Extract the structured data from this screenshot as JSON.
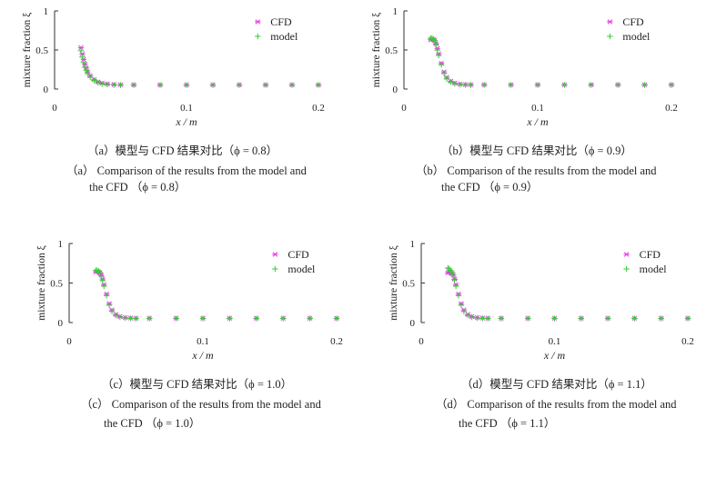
{
  "chart_data": [
    {
      "type": "scatter",
      "ylabel": "mixture fraction ξ",
      "xlabel": "x / m",
      "xlim": [
        0,
        0.2
      ],
      "ylim": [
        0,
        1
      ],
      "x_ticks": [
        "0",
        "0.1",
        "0.2"
      ],
      "y_ticks": [
        "0",
        "0.5",
        "1"
      ],
      "legend_position": "top-right",
      "series": [
        {
          "name": "CFD",
          "marker": "*",
          "color": "#e040e0",
          "x": [
            0.02,
            0.021,
            0.022,
            0.023,
            0.024,
            0.025,
            0.027,
            0.03,
            0.033,
            0.036,
            0.04,
            0.045,
            0.05,
            0.06,
            0.08,
            0.1,
            0.12,
            0.14,
            0.16,
            0.18,
            0.2
          ],
          "y": [
            0.53,
            0.45,
            0.38,
            0.32,
            0.27,
            0.22,
            0.17,
            0.12,
            0.09,
            0.075,
            0.065,
            0.058,
            0.055,
            0.054,
            0.054,
            0.054,
            0.054,
            0.054,
            0.054,
            0.054,
            0.054
          ]
        },
        {
          "name": "model",
          "marker": "+",
          "color": "#33cc33",
          "x": [
            0.02,
            0.021,
            0.022,
            0.023,
            0.024,
            0.025,
            0.027,
            0.03,
            0.033,
            0.036,
            0.04,
            0.045,
            0.05,
            0.06,
            0.08,
            0.1,
            0.12,
            0.14,
            0.16,
            0.18,
            0.2
          ],
          "y": [
            0.49,
            0.41,
            0.34,
            0.28,
            0.24,
            0.2,
            0.15,
            0.11,
            0.08,
            0.065,
            0.057,
            0.052,
            0.05,
            0.05,
            0.05,
            0.05,
            0.05,
            0.05,
            0.05,
            0.05,
            0.05
          ]
        }
      ]
    },
    {
      "type": "scatter",
      "ylabel": "mixture fraction ξ",
      "xlabel": "x / m",
      "xlim": [
        0,
        0.2
      ],
      "ylim": [
        0,
        1
      ],
      "x_ticks": [
        "0",
        "0.1",
        "0.2"
      ],
      "y_ticks": [
        "0",
        "0.5",
        "1"
      ],
      "legend_position": "top-right",
      "series": [
        {
          "name": "CFD",
          "marker": "*",
          "color": "#e040e0",
          "x": [
            0.02,
            0.021,
            0.022,
            0.023,
            0.024,
            0.025,
            0.026,
            0.028,
            0.03,
            0.032,
            0.035,
            0.038,
            0.042,
            0.046,
            0.05,
            0.06,
            0.08,
            0.1,
            0.12,
            0.14,
            0.16,
            0.18,
            0.2
          ],
          "y": [
            0.63,
            0.64,
            0.63,
            0.62,
            0.58,
            0.52,
            0.45,
            0.33,
            0.22,
            0.15,
            0.1,
            0.075,
            0.062,
            0.057,
            0.055,
            0.055,
            0.055,
            0.055,
            0.055,
            0.055,
            0.055,
            0.055,
            0.055
          ]
        },
        {
          "name": "model",
          "marker": "+",
          "color": "#33cc33",
          "x": [
            0.02,
            0.021,
            0.022,
            0.023,
            0.024,
            0.025,
            0.026,
            0.028,
            0.03,
            0.032,
            0.035,
            0.038,
            0.042,
            0.046,
            0.05,
            0.06,
            0.08,
            0.1,
            0.12,
            0.14,
            0.16,
            0.18,
            0.2
          ],
          "y": [
            0.65,
            0.65,
            0.64,
            0.62,
            0.57,
            0.5,
            0.43,
            0.31,
            0.2,
            0.13,
            0.09,
            0.068,
            0.057,
            0.053,
            0.051,
            0.051,
            0.051,
            0.051,
            0.051,
            0.051,
            0.051,
            0.051,
            0.051
          ]
        }
      ]
    },
    {
      "type": "scatter",
      "ylabel": "mixture fraction ξ",
      "xlabel": "x / m",
      "xlim": [
        0,
        0.2
      ],
      "ylim": [
        0,
        1
      ],
      "x_ticks": [
        "0",
        "0.1",
        "0.2"
      ],
      "y_ticks": [
        "0",
        "0.5",
        "1"
      ],
      "legend_position": "top-right",
      "series": [
        {
          "name": "CFD",
          "marker": "*",
          "color": "#e040e0",
          "x": [
            0.02,
            0.021,
            0.022,
            0.023,
            0.024,
            0.025,
            0.026,
            0.028,
            0.03,
            0.032,
            0.035,
            0.038,
            0.042,
            0.046,
            0.05,
            0.06,
            0.08,
            0.1,
            0.12,
            0.14,
            0.16,
            0.18,
            0.2
          ],
          "y": [
            0.64,
            0.65,
            0.64,
            0.63,
            0.6,
            0.55,
            0.48,
            0.36,
            0.24,
            0.16,
            0.1,
            0.075,
            0.062,
            0.057,
            0.055,
            0.055,
            0.055,
            0.055,
            0.055,
            0.055,
            0.055,
            0.055,
            0.055
          ]
        },
        {
          "name": "model",
          "marker": "+",
          "color": "#33cc33",
          "x": [
            0.02,
            0.021,
            0.022,
            0.023,
            0.024,
            0.025,
            0.026,
            0.028,
            0.03,
            0.032,
            0.035,
            0.038,
            0.042,
            0.046,
            0.05,
            0.06,
            0.08,
            0.1,
            0.12,
            0.14,
            0.16,
            0.18,
            0.2
          ],
          "y": [
            0.66,
            0.66,
            0.65,
            0.63,
            0.59,
            0.53,
            0.46,
            0.34,
            0.22,
            0.14,
            0.09,
            0.068,
            0.057,
            0.053,
            0.051,
            0.051,
            0.051,
            0.051,
            0.051,
            0.051,
            0.051,
            0.051,
            0.051
          ]
        }
      ]
    },
    {
      "type": "scatter",
      "ylabel": "mixture fraction ξ",
      "xlabel": "x / m",
      "xlim": [
        0,
        0.2
      ],
      "ylim": [
        0,
        1
      ],
      "x_ticks": [
        "0",
        "0.1",
        "0.2"
      ],
      "y_ticks": [
        "0",
        "0.5",
        "1"
      ],
      "legend_position": "top-right",
      "series": [
        {
          "name": "CFD",
          "marker": "*",
          "color": "#e040e0",
          "x": [
            0.02,
            0.021,
            0.022,
            0.023,
            0.024,
            0.025,
            0.026,
            0.028,
            0.03,
            0.032,
            0.035,
            0.038,
            0.042,
            0.046,
            0.05,
            0.06,
            0.08,
            0.1,
            0.12,
            0.14,
            0.16,
            0.18,
            0.2
          ],
          "y": [
            0.63,
            0.64,
            0.63,
            0.62,
            0.6,
            0.55,
            0.48,
            0.36,
            0.24,
            0.16,
            0.1,
            0.075,
            0.062,
            0.057,
            0.055,
            0.055,
            0.055,
            0.055,
            0.055,
            0.055,
            0.055,
            0.055,
            0.055
          ]
        },
        {
          "name": "model",
          "marker": "+",
          "color": "#33cc33",
          "x": [
            0.02,
            0.021,
            0.022,
            0.023,
            0.024,
            0.025,
            0.026,
            0.028,
            0.03,
            0.032,
            0.035,
            0.038,
            0.042,
            0.046,
            0.05,
            0.06,
            0.08,
            0.1,
            0.12,
            0.14,
            0.16,
            0.18,
            0.2
          ],
          "y": [
            0.69,
            0.68,
            0.66,
            0.64,
            0.6,
            0.54,
            0.46,
            0.34,
            0.22,
            0.14,
            0.09,
            0.068,
            0.057,
            0.053,
            0.051,
            0.051,
            0.051,
            0.051,
            0.051,
            0.051,
            0.051,
            0.051,
            0.051
          ]
        }
      ]
    }
  ],
  "captions": [
    {
      "zh": "（a）模型与 CFD 结果对比（ϕ = 0.8）",
      "en1": "（a） Comparison of the results from the model and",
      "en2": "the CFD （ϕ = 0.8）"
    },
    {
      "zh": "（b）模型与 CFD 结果对比（ϕ = 0.9）",
      "en1": "（b） Comparison of the results from the model and",
      "en2": "the CFD （ϕ = 0.9）"
    },
    {
      "zh": "（c）模型与 CFD 结果对比（ϕ = 1.0）",
      "en1": "（c） Comparison of the results from the model and",
      "en2": "the CFD （ϕ = 1.0）"
    },
    {
      "zh": "（d）模型与 CFD 结果对比（ϕ = 1.1）",
      "en1": "（d） Comparison of the results from the model and",
      "en2": "the CFD （ϕ = 1.1）"
    }
  ]
}
